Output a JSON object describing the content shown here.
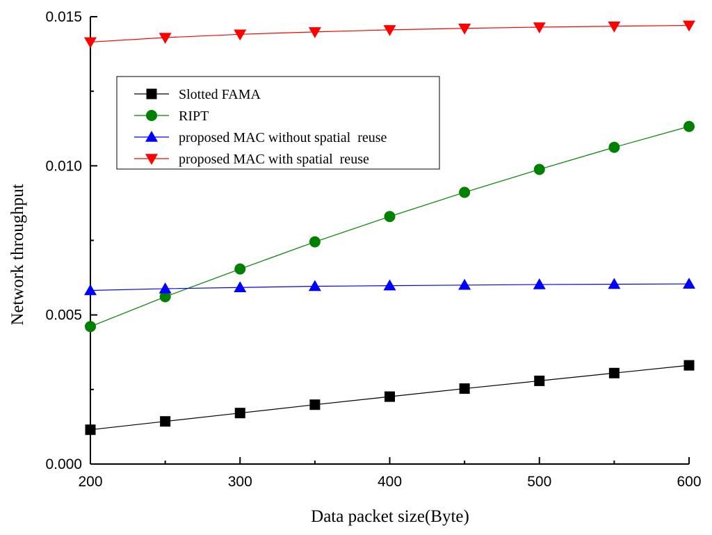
{
  "chart_data": {
    "type": "line",
    "title": "",
    "xlabel": "Data packet size(Byte)",
    "ylabel": "Network throughput",
    "xlim": [
      200,
      600
    ],
    "ylim": [
      0.0,
      0.015
    ],
    "x_ticks": [
      "200",
      "300",
      "400",
      "500",
      "600"
    ],
    "y_ticks": [
      "0.000",
      "0.005",
      "0.010",
      "0.015"
    ],
    "x_tick_values": [
      200,
      300,
      400,
      500,
      600
    ],
    "y_tick_values": [
      0.0,
      0.005,
      0.01,
      0.015
    ],
    "grid": false,
    "legend_position": "upper-left",
    "x": [
      200,
      250,
      300,
      350,
      400,
      450,
      500,
      550,
      600
    ],
    "series": [
      {
        "name": "Slotted FAMA",
        "color": "#000000",
        "marker": "square",
        "values": [
          0.00115,
          0.00143,
          0.00171,
          0.00199,
          0.00226,
          0.00253,
          0.00279,
          0.00305,
          0.00331
        ]
      },
      {
        "name": "RIPT",
        "color": "#008000",
        "marker": "circle",
        "values": [
          0.00461,
          0.00561,
          0.00654,
          0.00745,
          0.0083,
          0.00911,
          0.00988,
          0.01062,
          0.01132
        ]
      },
      {
        "name": "proposed MAC without spatial  reuse",
        "color": "#0000ff",
        "marker": "triangle-up",
        "values": [
          0.00582,
          0.00588,
          0.00592,
          0.00596,
          0.00598,
          0.006,
          0.00602,
          0.00603,
          0.00604
        ]
      },
      {
        "name": "proposed MAC with spatial  reuse",
        "color": "#ff0000",
        "marker": "triangle-down",
        "values": [
          0.01415,
          0.0143,
          0.01441,
          0.01449,
          0.01456,
          0.01461,
          0.01465,
          0.01468,
          0.01471
        ]
      }
    ]
  }
}
